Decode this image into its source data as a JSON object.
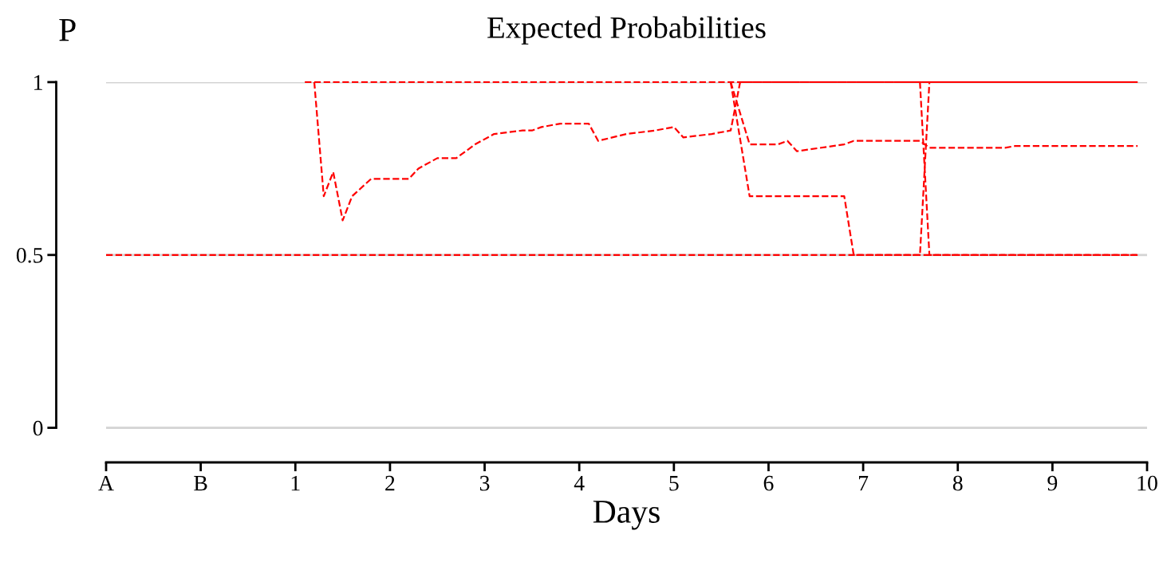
{
  "chart_data": {
    "type": "line",
    "title": "Expected Probabilities",
    "xlabel": "Days",
    "ylabel": "P",
    "xlim": [
      -1,
      10
    ],
    "xticks": [
      {
        "value": -1,
        "label": "A"
      },
      {
        "value": 0,
        "label": "B"
      },
      1,
      2,
      3,
      4,
      5,
      6,
      7,
      8,
      9,
      10
    ],
    "ylim": [
      -0.1,
      1
    ],
    "yticks": [
      0,
      0.5,
      1
    ],
    "grid": "y",
    "marker": "none",
    "line_style": "dashed",
    "series": [
      {
        "color": "#ff0000",
        "x": [
          -1,
          9.9
        ],
        "values": [
          0.5,
          0.5
        ]
      },
      {
        "color": "#ff0000",
        "x": [
          1.1,
          9.9
        ],
        "values": [
          1,
          1
        ]
      },
      {
        "color": "#ff0000",
        "x": [
          1.2,
          1.3,
          1.4,
          1.5,
          1.6,
          1.8,
          2.2,
          2.3,
          2.5,
          2.7,
          2.9,
          3.1,
          3.4,
          3.5,
          3.6,
          3.8,
          4.1,
          4.2,
          4.5,
          4.8,
          5.0,
          5.1,
          5.4,
          5.6,
          5.7,
          9.9
        ],
        "values": [
          1,
          0.67,
          0.74,
          0.6,
          0.67,
          0.72,
          0.72,
          0.75,
          0.78,
          0.78,
          0.82,
          0.85,
          0.86,
          0.86,
          0.87,
          0.88,
          0.88,
          0.83,
          0.85,
          0.86,
          0.87,
          0.84,
          0.85,
          0.86,
          1,
          1
        ]
      },
      {
        "color": "#ff0000",
        "x": [
          5.6,
          5.8,
          6.1,
          6.2,
          6.3,
          6.8,
          6.9,
          7.6,
          7.7,
          8.5,
          8.6,
          9.9
        ],
        "values": [
          1,
          0.82,
          0.82,
          0.83,
          0.8,
          0.82,
          0.83,
          0.83,
          0.81,
          0.81,
          0.815,
          0.815
        ]
      },
      {
        "color": "#ff0000",
        "x": [
          5.6,
          5.8,
          6.8,
          6.9,
          7.6,
          7.7,
          9.9
        ],
        "values": [
          1,
          0.67,
          0.67,
          0.5,
          0.5,
          1,
          1
        ]
      },
      {
        "color": "#ff0000",
        "x": [
          7.6,
          7.7,
          9.9
        ],
        "values": [
          1,
          0.5,
          0.5
        ]
      }
    ]
  }
}
